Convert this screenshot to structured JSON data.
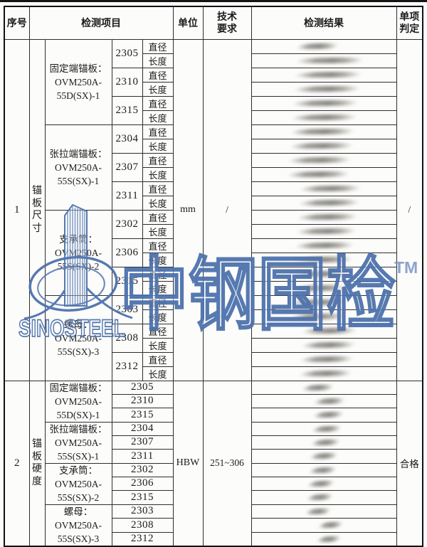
{
  "page": {
    "type": "scanned inspection report table",
    "paper_color": "#fcfcfb",
    "line_color": "#2e2e2e"
  },
  "header": {
    "columns": [
      "序号",
      "检测项目",
      "单位",
      "技术\n要求",
      "检测结果",
      "单项\n判定"
    ]
  },
  "sections": [
    {
      "no": "1",
      "category": "锚板尺寸",
      "row_type": "pair",
      "sub_labels": [
        "直径",
        "长度"
      ],
      "unit": "mm",
      "requirement": "/",
      "judgment": "/",
      "result_cells": "blurred illegible handwritten values",
      "groups": [
        {
          "label_lines": [
            "固定端锚板：",
            "OVM250A-",
            "55D(SX)-1"
          ],
          "numbers": [
            "2305",
            "2310",
            "2315"
          ]
        },
        {
          "label_lines": [
            "张拉端锚板：",
            "OVM250A-",
            "55S(SX)-1"
          ],
          "numbers": [
            "2304",
            "2307",
            "2311"
          ]
        },
        {
          "label_lines": [
            "支承筒：",
            "OVM250A-",
            "55S(SX)-2"
          ],
          "numbers": [
            "2302",
            "2306",
            "2315"
          ]
        },
        {
          "label_lines": [
            "螺母：",
            "OVM250A-",
            "55S(SX)-3"
          ],
          "numbers": [
            "2303",
            "2308",
            "2312"
          ]
        }
      ]
    },
    {
      "no": "2",
      "category": "锚板硬度",
      "row_type": "single",
      "sub_labels": [],
      "unit": "HBW",
      "requirement": "251~306",
      "judgment": "合格",
      "result_cells": "blurred illegible handwritten values",
      "groups": [
        {
          "label_lines": [
            "固定端锚板：",
            "OVM250A-",
            "55D(SX)-1"
          ],
          "numbers": [
            "2305",
            "2310",
            "2315"
          ]
        },
        {
          "label_lines": [
            "张拉端锚板：",
            "OVM250A-",
            "55S(SX)-1"
          ],
          "numbers": [
            "2304",
            "2307",
            "2311"
          ]
        },
        {
          "label_lines": [
            "支承筒：",
            "OVM250A-",
            "55S(SX)-2"
          ],
          "numbers": [
            "2302",
            "2306",
            "2315"
          ]
        },
        {
          "label_lines": [
            "螺母：",
            "OVM250A-",
            "55S(SX)-3"
          ],
          "numbers": [
            "2303",
            "2308",
            "2312"
          ]
        }
      ]
    }
  ],
  "watermark": {
    "logo_text": "SINOSTEEL",
    "cn_text": "中钢国检",
    "tm": "TM",
    "stroke_color": "#4e72ac",
    "tm_color": "#7a95c6"
  }
}
